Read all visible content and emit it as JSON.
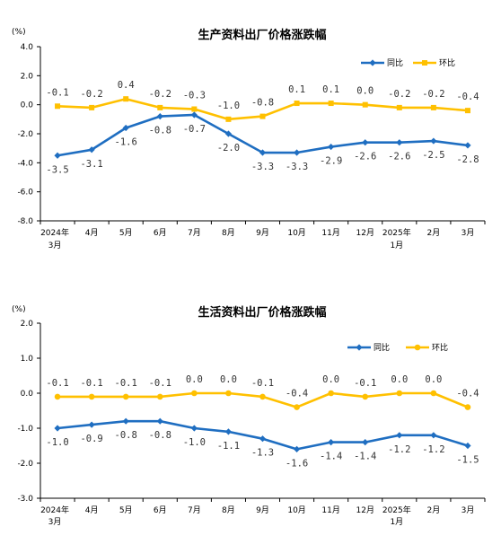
{
  "chart_data": [
    {
      "type": "line",
      "title": "生产资料出厂价格涨跌幅",
      "unit": "(%)",
      "categories": [
        "2024年\n3月",
        "4月",
        "5月",
        "6月",
        "7月",
        "8月",
        "9月",
        "10月",
        "11月",
        "12月",
        "2025年\n1月",
        "2月",
        "3月"
      ],
      "yticks": [
        "4.0",
        "2.0",
        "0.0",
        "-2.0",
        "-4.0",
        "-6.0",
        "-8.0"
      ],
      "ylim": [
        -8,
        4
      ],
      "grid": false,
      "legend_position": "top-right",
      "series": [
        {
          "name": "同比",
          "color": "#1F6EC1",
          "marker": "diamond",
          "values": [
            -3.5,
            -3.1,
            -1.6,
            -0.8,
            -0.7,
            -2.0,
            -3.3,
            -3.3,
            -2.9,
            -2.6,
            -2.6,
            -2.5,
            -2.8
          ],
          "labels": [
            "-3.5",
            "-3.1",
            "-1.6",
            "-0.8",
            "-0.7",
            "-2.0",
            "-3.3",
            "-3.3",
            "-2.9",
            "-2.6",
            "-2.6",
            "-2.5",
            "-2.8"
          ]
        },
        {
          "name": "环比",
          "color": "#FFC000",
          "marker": "square",
          "values": [
            -0.1,
            -0.2,
            0.4,
            -0.2,
            -0.3,
            -1.0,
            -0.8,
            0.1,
            0.1,
            0.0,
            -0.2,
            -0.2,
            -0.4
          ],
          "labels": [
            "-0.1",
            "-0.2",
            "0.4",
            "-0.2",
            "-0.3",
            "-1.0",
            "-0.8",
            "0.1",
            "0.1",
            "0.0",
            "-0.2",
            "-0.2",
            "-0.4"
          ]
        }
      ]
    },
    {
      "type": "line",
      "title": "生活资料出厂价格涨跌幅",
      "unit": "(%)",
      "categories": [
        "2024年\n3月",
        "4月",
        "5月",
        "6月",
        "7月",
        "8月",
        "9月",
        "10月",
        "11月",
        "12月",
        "2025年\n1月",
        "2月",
        "3月"
      ],
      "yticks": [
        "2.0",
        "1.0",
        "0.0",
        "-1.0",
        "-2.0",
        "-3.0"
      ],
      "ylim": [
        -3,
        2
      ],
      "grid": false,
      "legend_position": "top-right",
      "series": [
        {
          "name": "同比",
          "color": "#1F6EC1",
          "marker": "diamond",
          "values": [
            -1.0,
            -0.9,
            -0.8,
            -0.8,
            -1.0,
            -1.1,
            -1.3,
            -1.6,
            -1.4,
            -1.4,
            -1.2,
            -1.2,
            -1.5
          ],
          "labels": [
            "-1.0",
            "-0.9",
            "-0.8",
            "-0.8",
            "-1.0",
            "-1.1",
            "-1.3",
            "-1.6",
            "-1.4",
            "-1.4",
            "-1.2",
            "-1.2",
            "-1.5"
          ]
        },
        {
          "name": "环比",
          "color": "#FFC000",
          "marker": "circle",
          "values": [
            -0.1,
            -0.1,
            -0.1,
            -0.1,
            0.0,
            0.0,
            -0.1,
            -0.4,
            0.0,
            -0.1,
            0.0,
            0.0,
            -0.4
          ],
          "labels": [
            "-0.1",
            "-0.1",
            "-0.1",
            "-0.1",
            "0.0",
            "0.0",
            "-0.1",
            "-0.4",
            "0.0",
            "-0.1",
            "0.0",
            "0.0",
            "-0.4"
          ]
        }
      ]
    }
  ]
}
